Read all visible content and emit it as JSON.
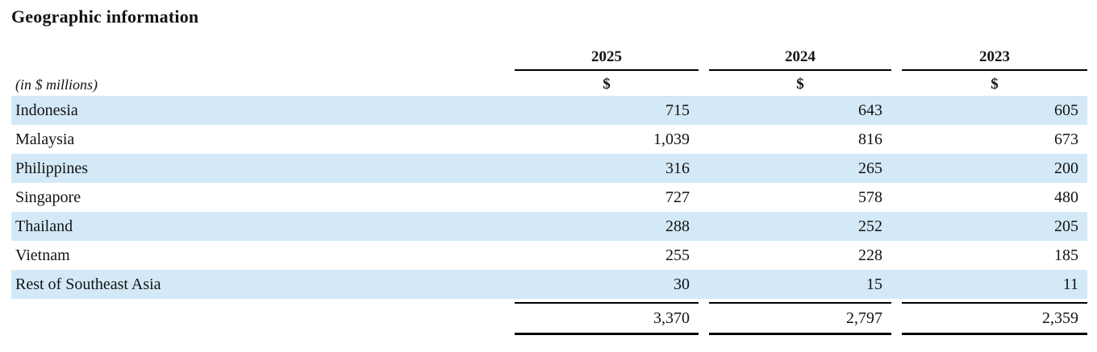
{
  "title": "Geographic information",
  "unit_note": "(in $ millions)",
  "columns": [
    {
      "year": "2025",
      "currency": "$"
    },
    {
      "year": "2024",
      "currency": "$"
    },
    {
      "year": "2023",
      "currency": "$"
    }
  ],
  "rows": [
    {
      "label": "Indonesia",
      "values": [
        "715",
        "643",
        "605"
      ]
    },
    {
      "label": "Malaysia",
      "values": [
        "1,039",
        "816",
        "673"
      ]
    },
    {
      "label": "Philippines",
      "values": [
        "316",
        "265",
        "200"
      ]
    },
    {
      "label": "Singapore",
      "values": [
        "727",
        "578",
        "480"
      ]
    },
    {
      "label": "Thailand",
      "values": [
        "288",
        "252",
        "205"
      ]
    },
    {
      "label": "Vietnam",
      "values": [
        "255",
        "228",
        "185"
      ]
    },
    {
      "label": "Rest of Southeast Asia",
      "values": [
        "30",
        "15",
        "11"
      ]
    }
  ],
  "total_row": {
    "values": [
      "3,370",
      "2,797",
      "2,359"
    ]
  },
  "colors": {
    "row_highlight": "#d4e9f7",
    "rule": "#000000",
    "text": "#131313"
  }
}
